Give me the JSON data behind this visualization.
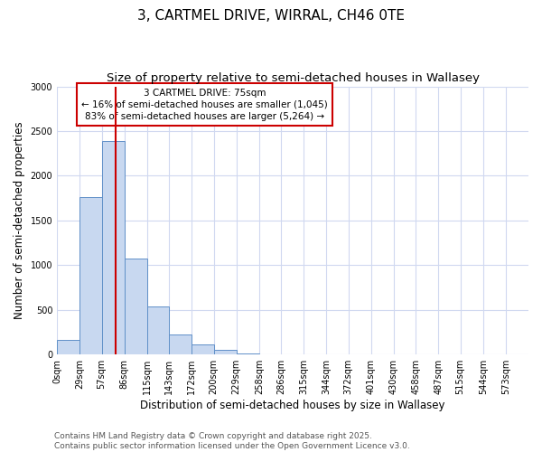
{
  "title": "3, CARTMEL DRIVE, WIRRAL, CH46 0TE",
  "subtitle": "Size of property relative to semi-detached houses in Wallasey",
  "xlabel": "Distribution of semi-detached houses by size in Wallasey",
  "ylabel": "Number of semi-detached properties",
  "bin_labels": [
    "0sqm",
    "29sqm",
    "57sqm",
    "86sqm",
    "115sqm",
    "143sqm",
    "172sqm",
    "200sqm",
    "229sqm",
    "258sqm",
    "286sqm",
    "315sqm",
    "344sqm",
    "372sqm",
    "401sqm",
    "430sqm",
    "458sqm",
    "487sqm",
    "515sqm",
    "544sqm",
    "573sqm"
  ],
  "bin_edges": [
    0,
    29,
    57,
    86,
    115,
    143,
    172,
    200,
    229,
    258,
    286,
    315,
    344,
    372,
    401,
    430,
    458,
    487,
    515,
    544,
    573
  ],
  "bar_heights": [
    160,
    1760,
    2390,
    1075,
    535,
    225,
    110,
    55,
    15,
    0,
    0,
    0,
    0,
    0,
    0,
    0,
    0,
    0,
    0,
    0
  ],
  "bar_color": "#c8d8f0",
  "bar_edgecolor": "#6090c8",
  "ylim": [
    0,
    3000
  ],
  "yticks": [
    0,
    500,
    1000,
    1500,
    2000,
    2500,
    3000
  ],
  "property_size": 75,
  "vline_color": "#cc0000",
  "annot_line1": "3 CARTMEL DRIVE: 75sqm",
  "annot_line2": "← 16% of semi-detached houses are smaller (1,045)",
  "annot_line3": "83% of semi-detached houses are larger (5,264) →",
  "annotation_box_color": "#ffffff",
  "annotation_box_edgecolor": "#cc0000",
  "footer_line1": "Contains HM Land Registry data © Crown copyright and database right 2025.",
  "footer_line2": "Contains public sector information licensed under the Open Government Licence v3.0.",
  "background_color": "#ffffff",
  "plot_background": "#ffffff",
  "grid_color": "#d0d8f0",
  "title_fontsize": 11,
  "subtitle_fontsize": 9.5,
  "tick_fontsize": 7,
  "ylabel_fontsize": 8.5,
  "xlabel_fontsize": 8.5,
  "annotation_fontsize": 7.5,
  "footer_fontsize": 6.5
}
